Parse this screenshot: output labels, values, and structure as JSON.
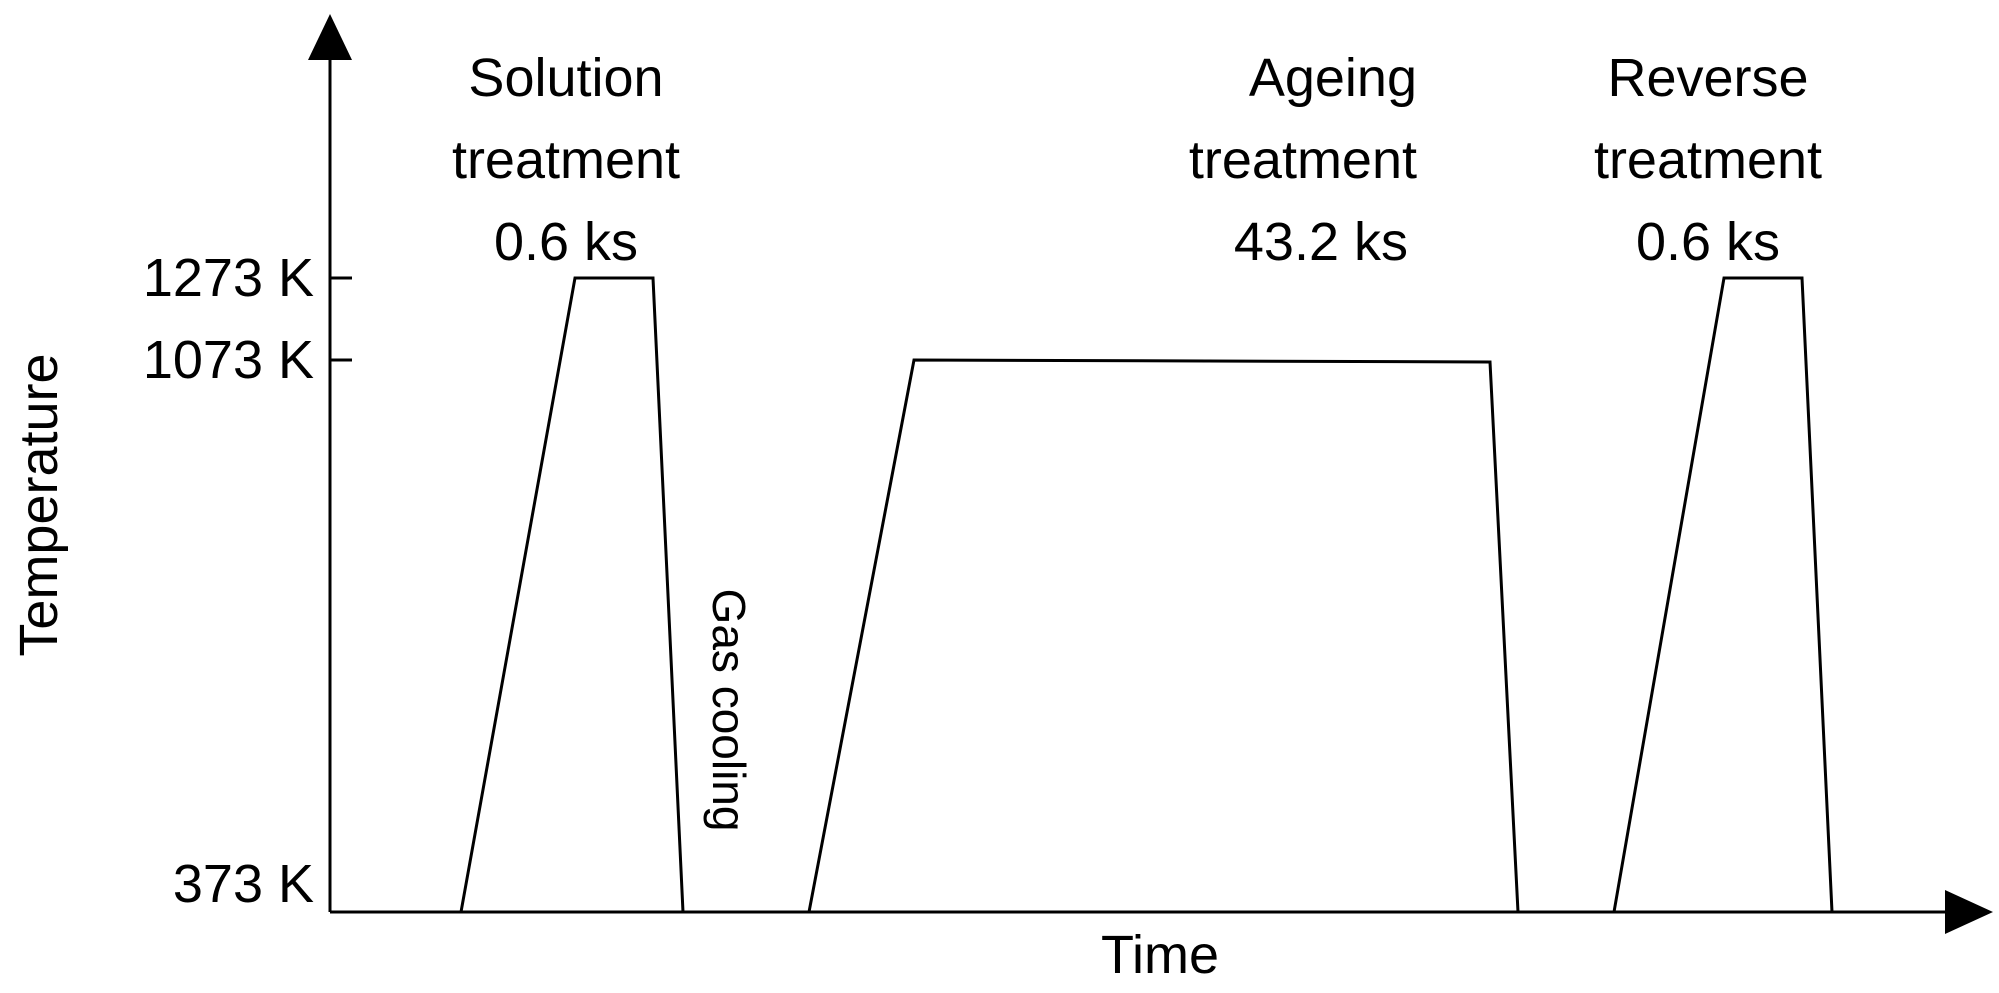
{
  "axes": {
    "y_label": "Temperature",
    "x_label": "Time",
    "y_ticks": [
      "1273 K",
      "1073 K",
      "373 K"
    ]
  },
  "stages": [
    {
      "line1": "Solution",
      "line2": "treatment",
      "duration": "0.6 ks"
    },
    {
      "line1": "Ageing",
      "line2": "treatment",
      "duration": "43.2 ks"
    },
    {
      "line1": "Reverse",
      "line2": "treatment",
      "duration": "0.6 ks"
    }
  ],
  "annotations": {
    "gas_cooling": "Gas cooling"
  },
  "colors": {
    "line": "#000000",
    "background": "#ffffff"
  }
}
